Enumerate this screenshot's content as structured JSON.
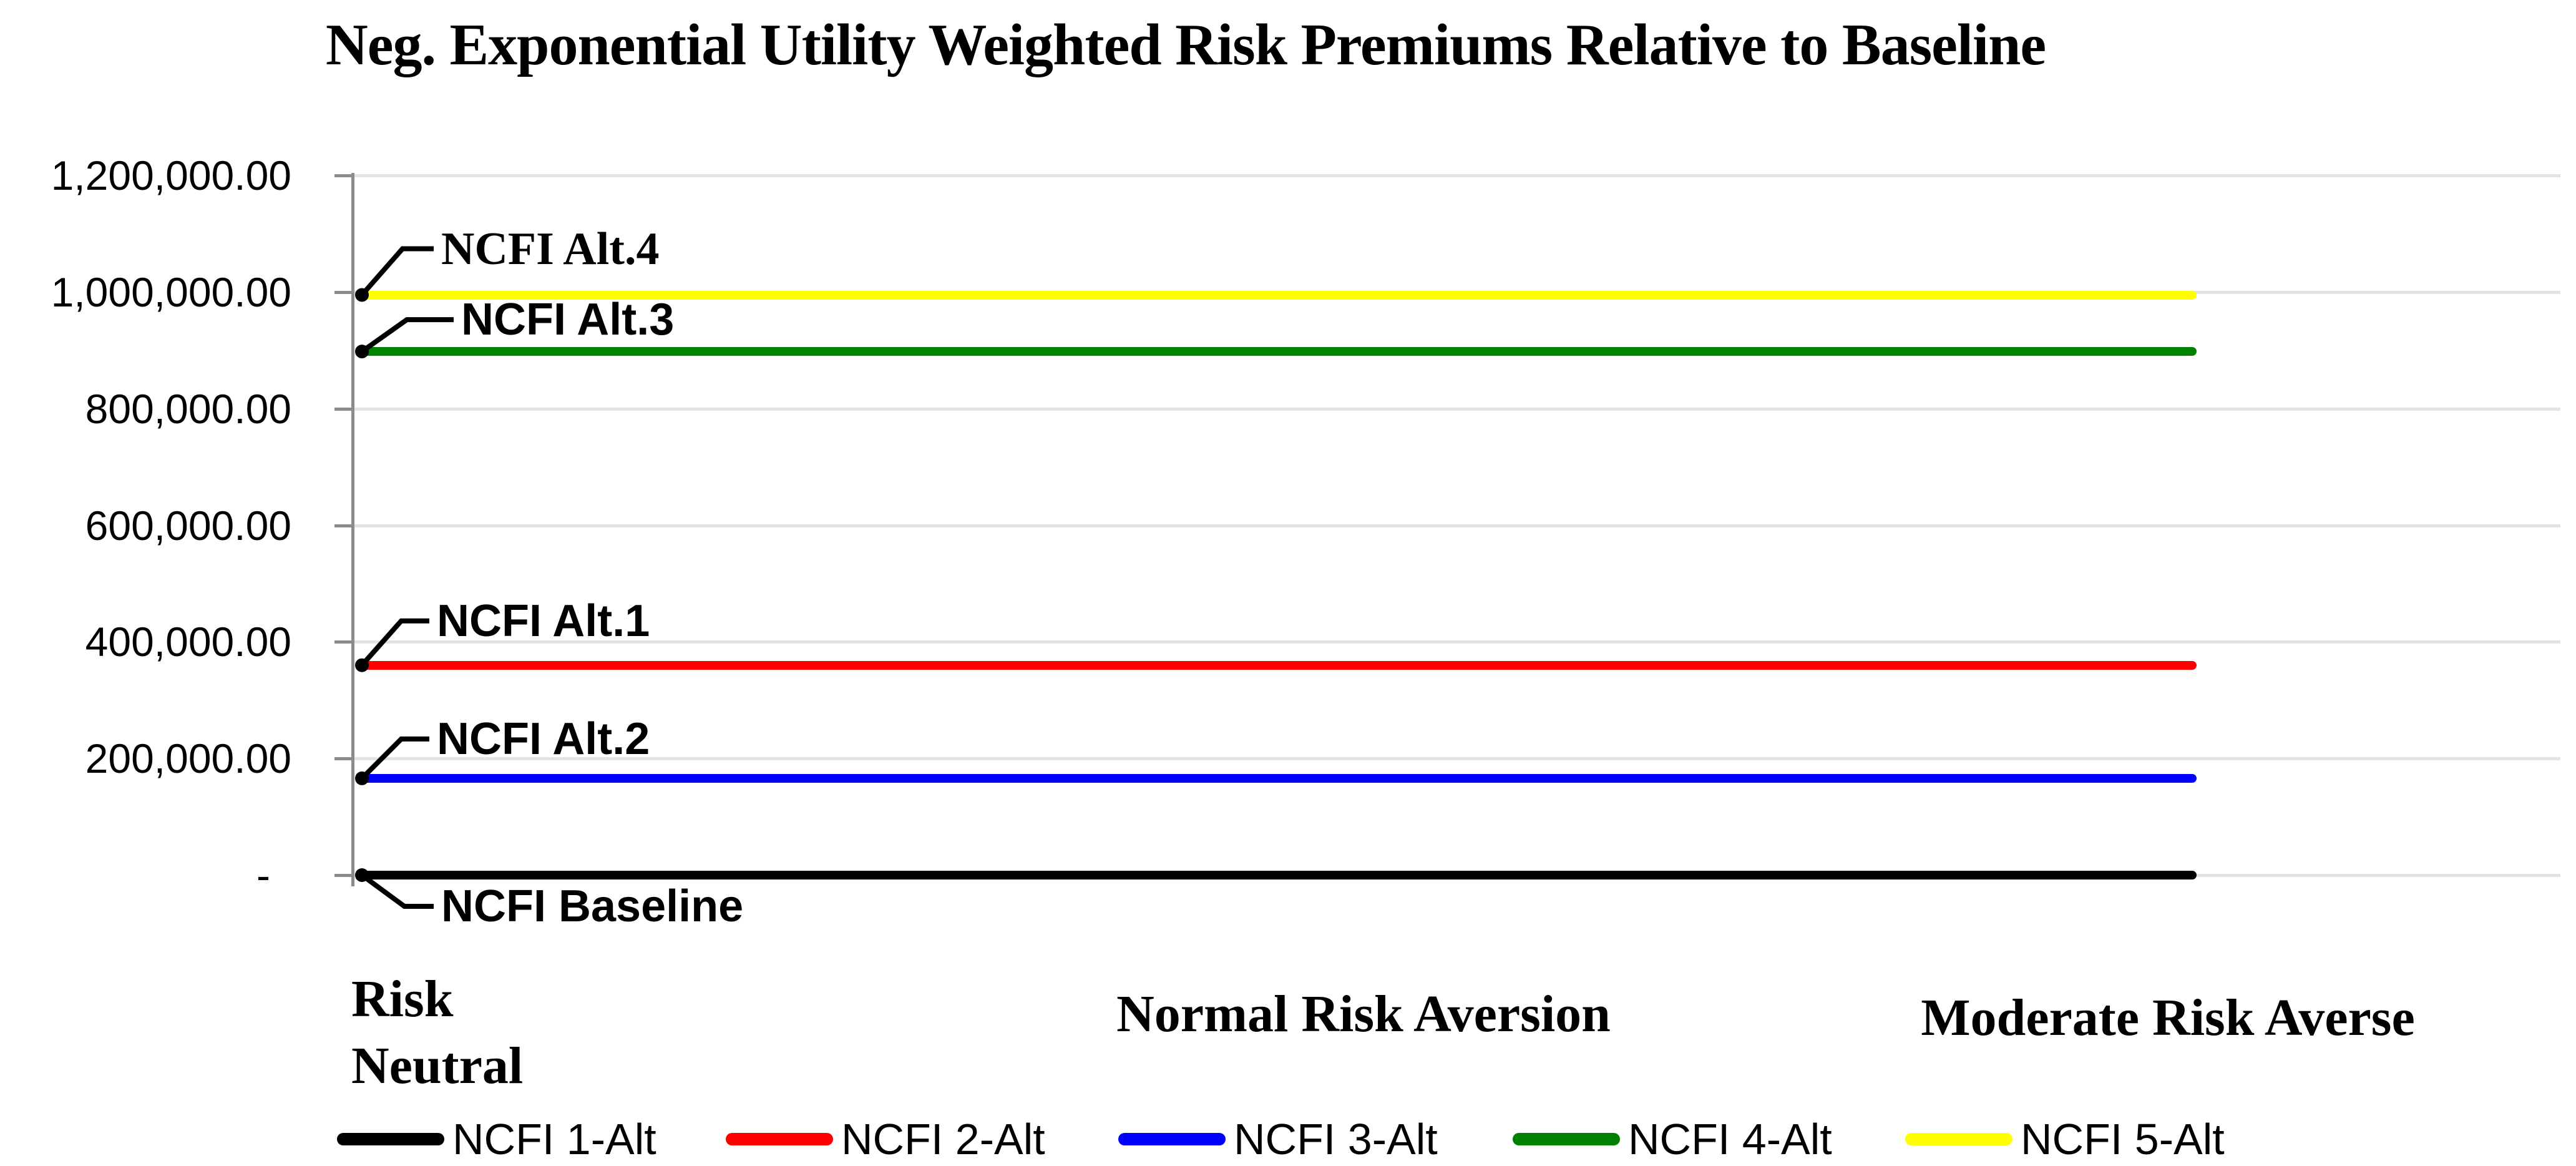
{
  "chart_data": {
    "type": "line",
    "title": "Neg. Exponential Utility Weighted Risk Premiums Relative to Baseline",
    "categories": [
      "Risk Neutral",
      "Normal Risk Aversion",
      "Moderate Risk Averse"
    ],
    "series": [
      {
        "name": "NCFI 1-Alt",
        "color": "#000000",
        "annotation": "NCFI Baseline",
        "values": [
          0,
          0,
          0
        ]
      },
      {
        "name": "NCFI 2-Alt",
        "color": "#FF0000",
        "annotation": "NCFI Alt.1",
        "values": [
          360000,
          360000,
          360000
        ]
      },
      {
        "name": "NCFI 3-Alt",
        "color": "#0000FF",
        "annotation": "NCFI Alt.2",
        "values": [
          166000,
          166000,
          166000
        ]
      },
      {
        "name": "NCFI 4-Alt",
        "color": "#008000",
        "annotation": "NCFI Alt.3",
        "values": [
          898000,
          898000,
          898000
        ]
      },
      {
        "name": "NCFI 5-Alt",
        "color": "#FFFF00",
        "annotation": "NCFI Alt.4",
        "values": [
          995000,
          995000,
          995000
        ]
      }
    ],
    "y_axis": {
      "min": 0,
      "max": 1200000,
      "tick_step": 200000,
      "tick_values": [
        1200000,
        1000000,
        800000,
        600000,
        400000,
        200000,
        0
      ],
      "tick_labels": [
        "1,200,000.00",
        "1,000,000.00",
        "800,000.00",
        "600,000.00",
        "400,000.00",
        "200,000.00",
        "-"
      ]
    },
    "grid": true,
    "legend_position": "bottom",
    "style_colors": {
      "axis": "#8C8C8C",
      "gridline": "#E3E3E3",
      "text": "#000000"
    }
  }
}
